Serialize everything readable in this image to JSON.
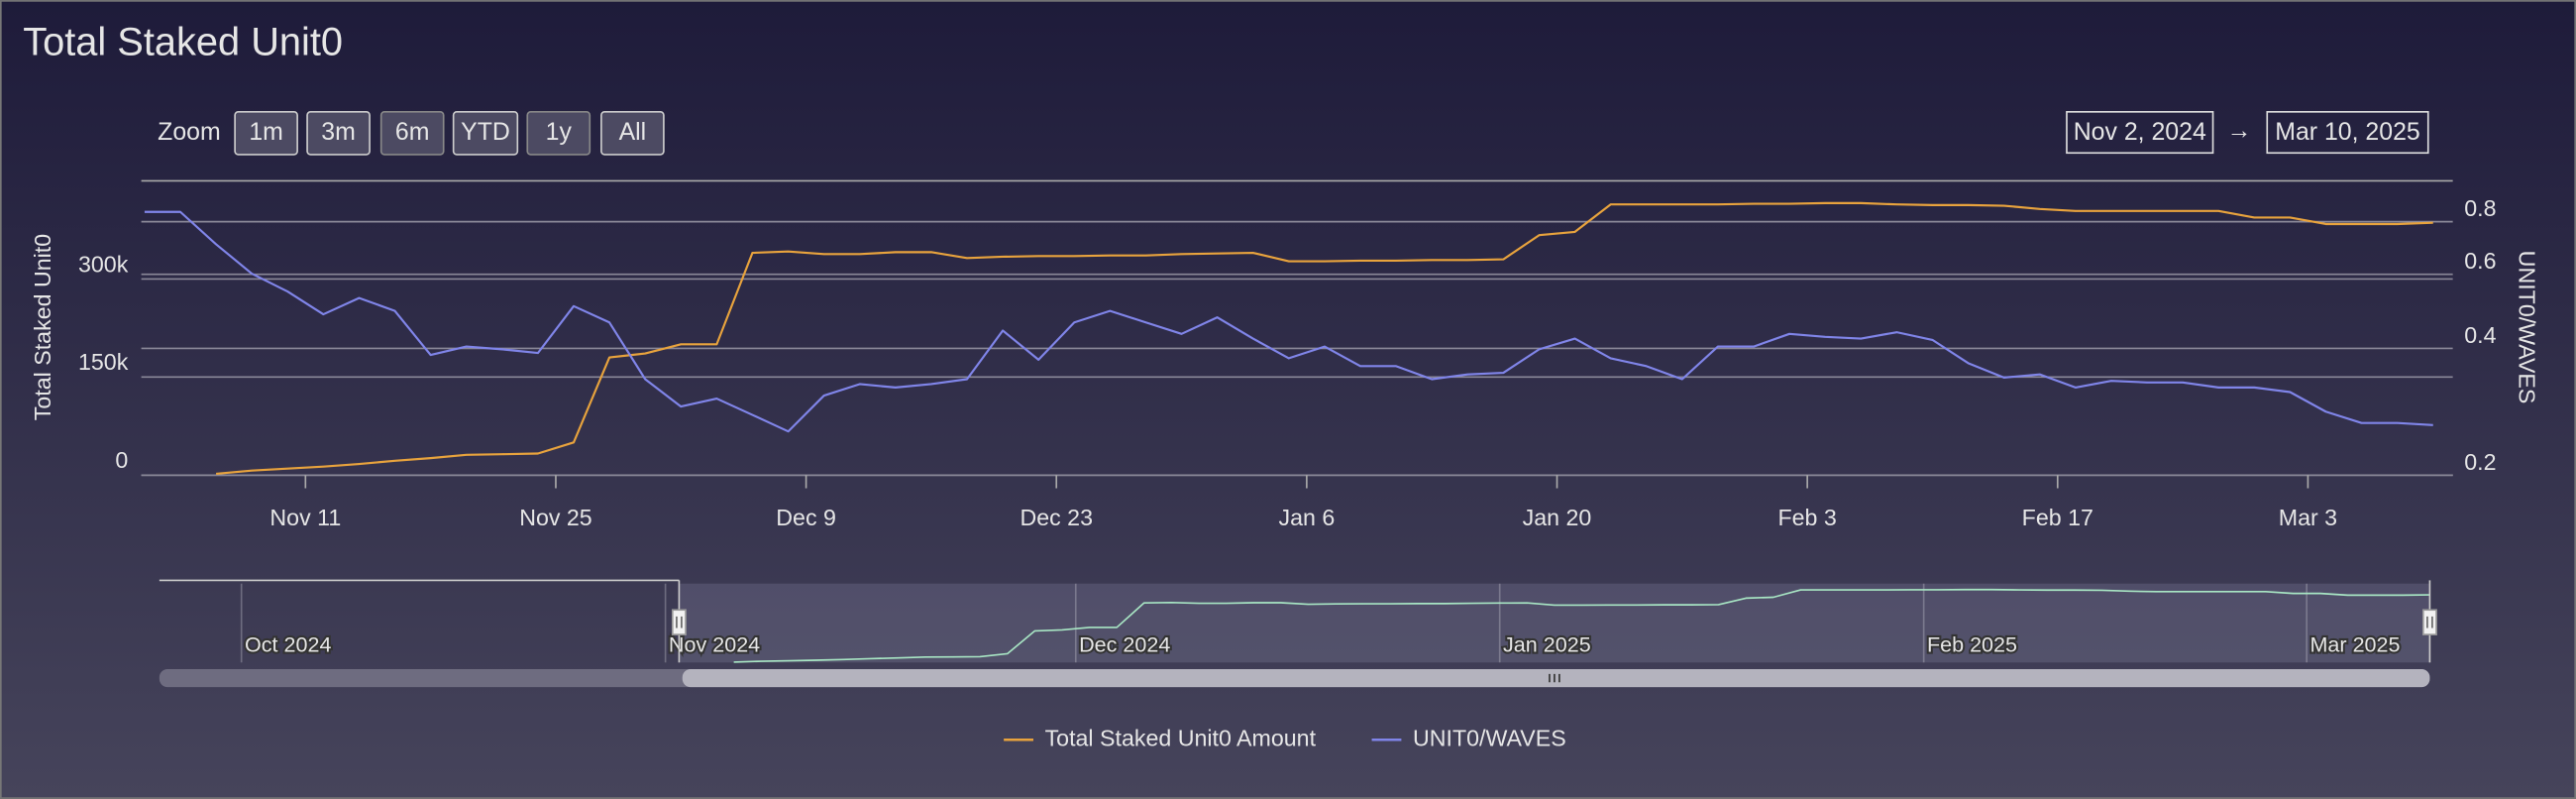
{
  "chart_data": {
    "type": "line",
    "title": "Total Staked Unit0",
    "range_selector": {
      "label": "Zoom",
      "buttons": [
        {
          "text": "1m",
          "enabled": true
        },
        {
          "text": "3m",
          "enabled": true
        },
        {
          "text": "6m",
          "enabled": false
        },
        {
          "text": "YTD",
          "enabled": true
        },
        {
          "text": "1y",
          "enabled": false
        },
        {
          "text": "All",
          "enabled": true
        }
      ],
      "from": "Nov 2, 2024",
      "arrow": "→",
      "to": "Mar 10, 2025"
    },
    "y_label": "Total Staked Unit0",
    "y2_label": "UNIT0/WAVES",
    "x": [
      "2024-11-02",
      "2024-11-04",
      "2024-11-06",
      "2024-11-08",
      "2024-11-10",
      "2024-11-12",
      "2024-11-14",
      "2024-11-16",
      "2024-11-18",
      "2024-11-20",
      "2024-11-22",
      "2024-11-24",
      "2024-11-26",
      "2024-11-28",
      "2024-11-30",
      "2024-12-02",
      "2024-12-04",
      "2024-12-06",
      "2024-12-08",
      "2024-12-10",
      "2024-12-12",
      "2024-12-14",
      "2024-12-16",
      "2024-12-18",
      "2024-12-20",
      "2024-12-22",
      "2024-12-24",
      "2024-12-26",
      "2024-12-28",
      "2024-12-30",
      "2025-01-01",
      "2025-01-03",
      "2025-01-05",
      "2025-01-07",
      "2025-01-09",
      "2025-01-11",
      "2025-01-13",
      "2025-01-15",
      "2025-01-17",
      "2025-01-19",
      "2025-01-21",
      "2025-01-23",
      "2025-01-25",
      "2025-01-27",
      "2025-01-29",
      "2025-01-31",
      "2025-02-02",
      "2025-02-04",
      "2025-02-06",
      "2025-02-08",
      "2025-02-10",
      "2025-02-12",
      "2025-02-14",
      "2025-02-16",
      "2025-02-18",
      "2025-02-20",
      "2025-02-22",
      "2025-02-24",
      "2025-02-26",
      "2025-02-28",
      "2025-03-02",
      "2025-03-04",
      "2025-03-06",
      "2025-03-08",
      "2025-03-10"
    ],
    "series": [
      {
        "name": "Total Staked Unit0 Amount",
        "color": "#e8a33d",
        "axis": "y",
        "values": [
          null,
          null,
          2000,
          7000,
          10000,
          13000,
          17000,
          22000,
          26000,
          31000,
          32000,
          33000,
          50000,
          180000,
          186000,
          200000,
          200000,
          340000,
          342000,
          338000,
          338000,
          341000,
          341000,
          332000,
          334000,
          335000,
          335000,
          336000,
          336000,
          338000,
          339000,
          340000,
          327000,
          327000,
          328000,
          328000,
          329000,
          329000,
          330000,
          367000,
          372000,
          414000,
          414000,
          414000,
          414000,
          415000,
          415000,
          416000,
          416000,
          414000,
          413000,
          413000,
          412000,
          407000,
          404000,
          404000,
          404000,
          404000,
          404000,
          394000,
          394000,
          384000,
          384000,
          384000,
          386000
        ]
      },
      {
        "name": "UNIT0/WAVES",
        "color": "#8085e9",
        "axis": "y2",
        "values": [
          0.844,
          0.844,
          0.707,
          0.602,
          0.546,
          0.482,
          0.527,
          0.491,
          0.386,
          0.404,
          0.398,
          0.39,
          0.504,
          0.461,
          0.338,
          0.291,
          0.304,
          0.278,
          0.254,
          0.309,
          0.329,
          0.323,
          0.329,
          0.338,
          0.441,
          0.376,
          0.461,
          0.491,
          0.461,
          0.433,
          0.474,
          0.422,
          0.379,
          0.404,
          0.363,
          0.363,
          0.338,
          0.347,
          0.35,
          0.398,
          0.422,
          0.379,
          0.363,
          0.338,
          0.404,
          0.404,
          0.433,
          0.426,
          0.422,
          0.437,
          0.419,
          0.369,
          0.341,
          0.347,
          0.323,
          0.335,
          0.332,
          0.332,
          0.323,
          0.323,
          0.315,
          0.283,
          0.266,
          0.266,
          0.263
        ]
      }
    ],
    "xlim": [
      "2024-11-02",
      "2025-03-10"
    ],
    "xticks": [
      {
        "value": "2024-11-11",
        "label": "Nov 11"
      },
      {
        "value": "2024-11-25",
        "label": "Nov 25"
      },
      {
        "value": "2024-12-09",
        "label": "Dec 9"
      },
      {
        "value": "2024-12-23",
        "label": "Dec 23"
      },
      {
        "value": "2025-01-06",
        "label": "Jan 6"
      },
      {
        "value": "2025-01-20",
        "label": "Jan 20"
      },
      {
        "value": "2025-02-03",
        "label": "Feb 3"
      },
      {
        "value": "2025-02-17",
        "label": "Feb 17"
      },
      {
        "value": "2025-03-03",
        "label": "Mar 3"
      }
    ],
    "ylim": [
      0,
      450000
    ],
    "yticks": [
      0,
      {
        "value": 150000,
        "label": "150k"
      },
      {
        "value": 300000,
        "label": "300k"
      }
    ],
    "y2lim": [
      0.2,
      1
    ],
    "y2ticks": [
      0.2,
      0.4,
      0.6,
      0.8
    ],
    "y2log": true,
    "grid": true,
    "legend": "bottom",
    "navigator": {
      "color": "#a8e6c4",
      "xlim": [
        "2024-09-25",
        "2025-03-10"
      ],
      "xticks": [
        {
          "value": "2024-10-01",
          "label": "Oct 2024"
        },
        {
          "value": "2024-11-01",
          "label": "Nov 2024"
        },
        {
          "value": "2024-12-01",
          "label": "Dec 2024"
        },
        {
          "value": "2025-01-01",
          "label": "Jan 2025"
        },
        {
          "value": "2025-02-01",
          "label": "Feb 2025"
        },
        {
          "value": "2025-03-01",
          "label": "Mar 2025"
        }
      ]
    }
  }
}
